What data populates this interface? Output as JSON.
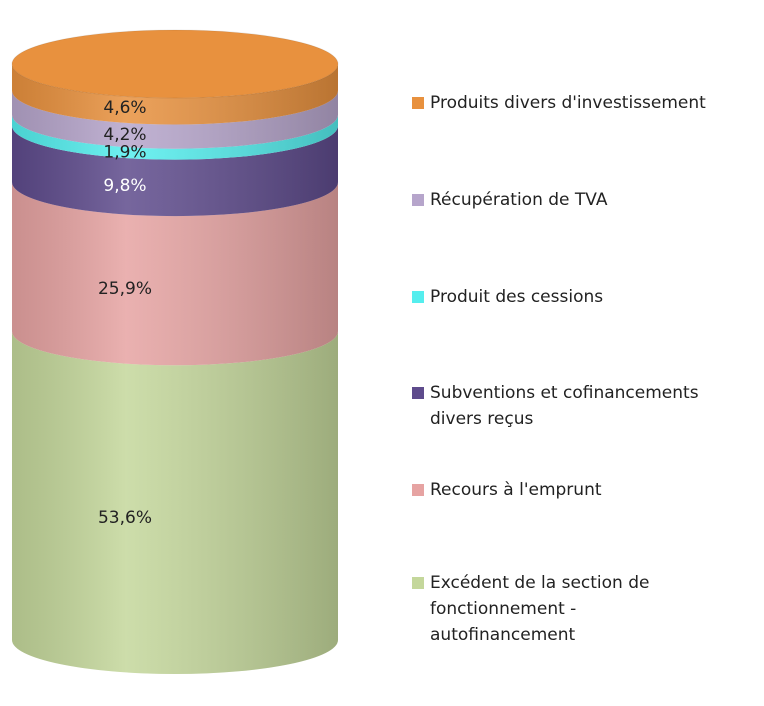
{
  "chart_data": {
    "type": "stacked-cylinder",
    "series": [
      {
        "name": "Excédent de la section de fonctionnement - autofinancement",
        "color": "#c4d79b",
        "values": [
          53.6
        ],
        "value_labels": [
          "53,6%"
        ]
      },
      {
        "name": "Recours à l'emprunt",
        "color": "#e6a3a2",
        "values": [
          25.9
        ],
        "value_labels": [
          "25,9%"
        ]
      },
      {
        "name": "Subventions et cofinancements divers reçus",
        "color": "#5e4b8c",
        "values": [
          9.8
        ],
        "value_labels": [
          "9,8%"
        ]
      },
      {
        "name": "Produit des cessions",
        "color": "#55eeee",
        "values": [
          1.9
        ],
        "value_labels": [
          "1,9%"
        ]
      },
      {
        "name": "Récupération de TVA",
        "color": "#b6a5cb",
        "values": [
          4.2
        ],
        "value_labels": [
          "4,2%"
        ]
      },
      {
        "name": "Produits divers d'investissement",
        "color": "#e8913e",
        "values": [
          4.6
        ],
        "value_labels": [
          "4,6%"
        ]
      }
    ]
  }
}
